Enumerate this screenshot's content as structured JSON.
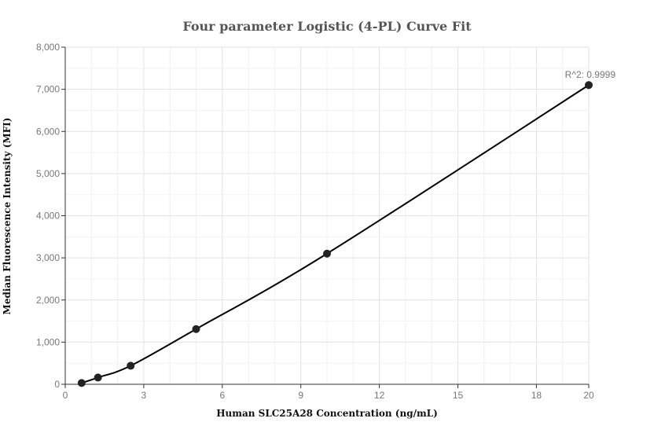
{
  "chart_data": {
    "type": "scatter",
    "title": "Four parameter Logistic (4-PL) Curve Fit",
    "xlabel": "Human SLC25A28 Concentration (ng/mL)",
    "ylabel": "Median Fluorescence Intensity (MFI)",
    "xlim": [
      0,
      20
    ],
    "ylim": [
      0,
      8000
    ],
    "xticks": [
      "0",
      "3",
      "6",
      "9",
      "12",
      "15",
      "18",
      "20"
    ],
    "xtick_values": [
      0,
      3,
      6,
      9,
      12,
      15,
      18,
      20
    ],
    "yticks": [
      "0",
      "1,000",
      "2,000",
      "3,000",
      "4,000",
      "5,000",
      "6,000",
      "7,000",
      "8,000"
    ],
    "ytick_values": [
      0,
      1000,
      2000,
      3000,
      4000,
      5000,
      6000,
      7000,
      8000
    ],
    "points": {
      "x": [
        0.625,
        1.25,
        2.5,
        5,
        10,
        20
      ],
      "y": [
        30,
        160,
        440,
        1310,
        3100,
        7100
      ]
    },
    "fit_line": true,
    "grid": true,
    "annotation": "R^2: 0.9999",
    "colors": {
      "points": "#222222",
      "line": "#000000",
      "grid": "#e6e6e6"
    }
  }
}
